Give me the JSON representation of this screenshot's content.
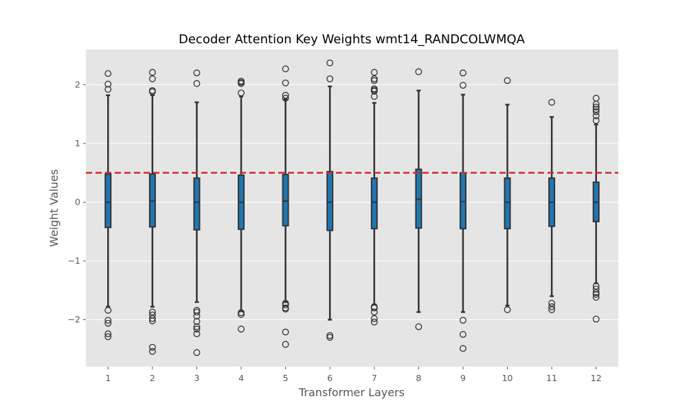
{
  "chart_data": {
    "type": "box",
    "title": "Decoder Attention Key Weights wmt14_RANDCOLWMQA",
    "xlabel": "Transformer Layers",
    "ylabel": "Weight Values",
    "ylim": [
      -2.8,
      2.6
    ],
    "yticks": [
      -2,
      -1,
      0,
      1,
      2
    ],
    "ytick_labels": [
      "−2",
      "−1",
      "0",
      "1",
      "2"
    ],
    "grid": true,
    "categories": [
      "1",
      "2",
      "3",
      "4",
      "5",
      "6",
      "7",
      "8",
      "9",
      "10",
      "11",
      "12"
    ],
    "box_color": "#1f77b4",
    "reference_line": {
      "y": 0.5,
      "color": "#d62728",
      "style": "dashed"
    },
    "boxes": [
      {
        "q1": -0.43,
        "median": 0.0,
        "q3": 0.48,
        "whisker_low": -1.78,
        "whisker_high": 1.82,
        "outliers": [
          2.19,
          2.01,
          1.92,
          -1.84,
          -2.01,
          -2.06,
          -2.24,
          -2.29
        ]
      },
      {
        "q1": -0.42,
        "median": 0.02,
        "q3": 0.48,
        "whisker_low": -1.78,
        "whisker_high": 1.82,
        "outliers": [
          2.21,
          2.1,
          1.9,
          1.88,
          -1.87,
          -1.92,
          -1.98,
          -2.02,
          -2.47,
          -2.54
        ]
      },
      {
        "q1": -0.47,
        "median": 0.0,
        "q3": 0.41,
        "whisker_low": -1.7,
        "whisker_high": 1.7,
        "outliers": [
          2.2,
          2.02,
          -1.84,
          -1.87,
          -1.94,
          -2.03,
          -2.12,
          -2.16,
          -2.24,
          -2.56
        ]
      },
      {
        "q1": -0.46,
        "median": 0.0,
        "q3": 0.46,
        "whisker_low": -1.85,
        "whisker_high": 1.8,
        "outliers": [
          2.06,
          2.04,
          2.02,
          1.86,
          -1.88,
          -1.91,
          -2.16
        ]
      },
      {
        "q1": -0.4,
        "median": 0.02,
        "q3": 0.47,
        "whisker_low": -1.7,
        "whisker_high": 1.75,
        "outliers": [
          2.27,
          2.03,
          1.82,
          1.77,
          -1.72,
          -1.75,
          -1.8,
          -1.82,
          -2.21,
          -2.42
        ]
      },
      {
        "q1": -0.48,
        "median": 0.0,
        "q3": 0.52,
        "whisker_low": -2.0,
        "whisker_high": 1.97,
        "outliers": [
          2.37,
          2.1,
          -2.27,
          -2.3
        ]
      },
      {
        "q1": -0.45,
        "median": 0.0,
        "q3": 0.41,
        "whisker_low": -1.74,
        "whisker_high": 1.69,
        "outliers": [
          2.21,
          2.1,
          2.07,
          1.93,
          1.91,
          1.89,
          1.8,
          -1.78,
          -1.8,
          -1.87,
          -1.98,
          -2.04
        ]
      },
      {
        "q1": -0.44,
        "median": 0.05,
        "q3": 0.56,
        "whisker_low": -1.87,
        "whisker_high": 1.9,
        "outliers": [
          2.22,
          -2.12
        ]
      },
      {
        "q1": -0.45,
        "median": 0.01,
        "q3": 0.5,
        "whisker_low": -1.87,
        "whisker_high": 1.83,
        "outliers": [
          2.2,
          1.99,
          -2.01,
          -2.25,
          -2.49
        ]
      },
      {
        "q1": -0.45,
        "median": 0.0,
        "q3": 0.41,
        "whisker_low": -1.76,
        "whisker_high": 1.66,
        "outliers": [
          2.07,
          -1.83
        ]
      },
      {
        "q1": -0.41,
        "median": 0.0,
        "q3": 0.41,
        "whisker_low": -1.6,
        "whisker_high": 1.45,
        "outliers": [
          1.7,
          -1.72,
          -1.78,
          -1.83
        ]
      },
      {
        "q1": -0.33,
        "median": 0.0,
        "q3": 0.34,
        "whisker_low": -1.38,
        "whisker_high": 1.32,
        "outliers": [
          1.77,
          1.67,
          1.62,
          1.58,
          1.54,
          1.47,
          1.39,
          -1.43,
          -1.48,
          -1.54,
          -1.57,
          -1.62,
          -1.99
        ]
      }
    ]
  }
}
